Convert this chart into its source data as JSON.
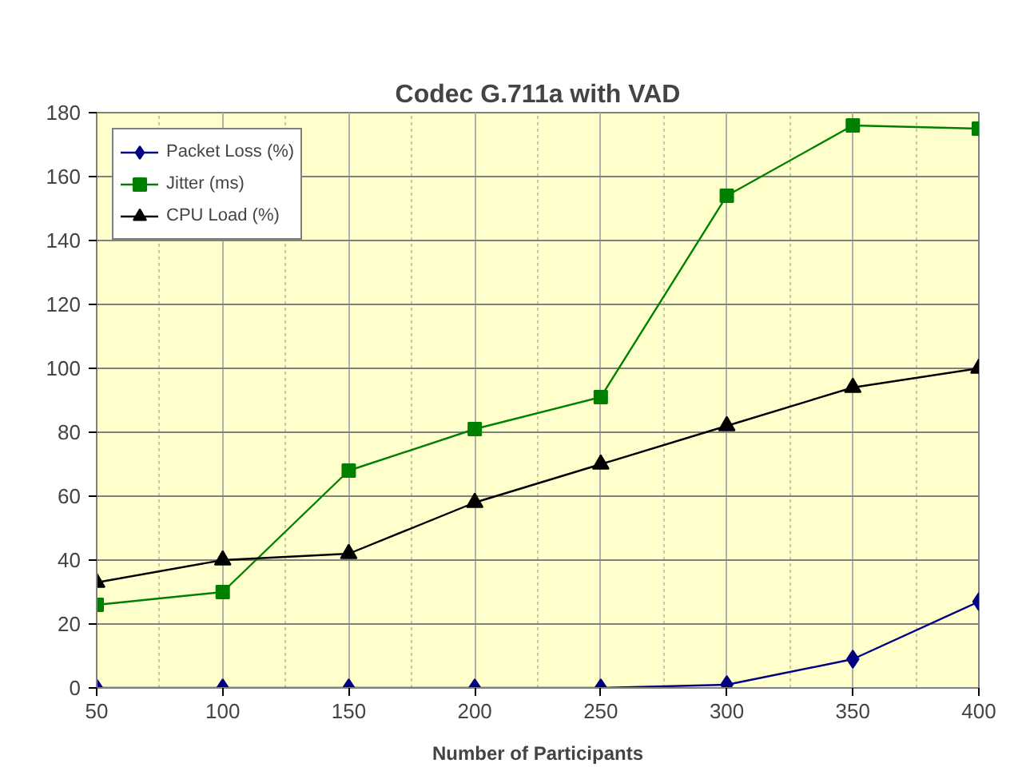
{
  "chart_data": {
    "type": "line",
    "title": "Codec G.711a with VAD",
    "xlabel": "Number of Participants",
    "x": [
      50,
      100,
      150,
      200,
      250,
      300,
      350,
      400
    ],
    "series": [
      {
        "name": "Packet Loss (%)",
        "color": "#000080",
        "marker": "diamond",
        "values": [
          0,
          0,
          0,
          0,
          0,
          1,
          9,
          27
        ]
      },
      {
        "name": "Jitter (ms)",
        "color": "#008000",
        "marker": "square",
        "values": [
          26,
          30,
          68,
          81,
          91,
          154,
          176,
          175
        ]
      },
      {
        "name": "CPU Load (%)",
        "color": "#000000",
        "marker": "triangle",
        "values": [
          33,
          40,
          42,
          58,
          70,
          82,
          94,
          100
        ]
      }
    ],
    "xlim": [
      50,
      400
    ],
    "xticks": [
      50,
      100,
      150,
      200,
      250,
      300,
      350,
      400
    ],
    "ylim": [
      0,
      180
    ],
    "yticks": [
      0,
      20,
      40,
      60,
      80,
      100,
      120,
      140,
      160,
      180
    ],
    "grid": true,
    "legend": "top left",
    "line_style": "solid"
  }
}
